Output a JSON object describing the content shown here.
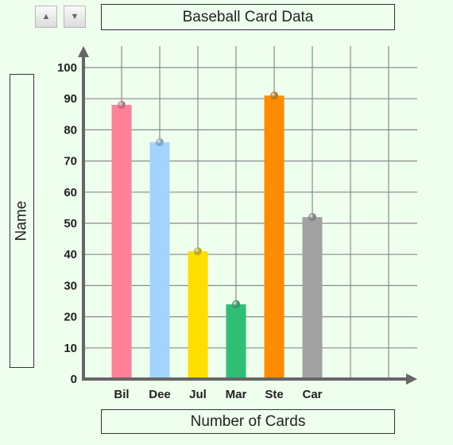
{
  "controls": {
    "up_icon": "triangle-up-icon",
    "down_icon": "triangle-down-icon"
  },
  "chart_data": {
    "type": "bar",
    "title": "Baseball Card Data",
    "xlabel": "Number of Cards",
    "ylabel": "Name",
    "categories": [
      "Bil",
      "Dee",
      "Jul",
      "Mar",
      "Ste",
      "Car"
    ],
    "values": [
      88,
      76,
      41,
      24,
      91,
      52
    ],
    "colors": [
      "#ff8198",
      "#a3d4ff",
      "#ffde00",
      "#2ebf74",
      "#ff8c00",
      "#a1a1a1"
    ],
    "ylim": [
      0,
      100
    ],
    "yticks": [
      0,
      10,
      20,
      30,
      40,
      50,
      60,
      70,
      80,
      90,
      100
    ],
    "grid": true,
    "axis_color": "#666666"
  }
}
